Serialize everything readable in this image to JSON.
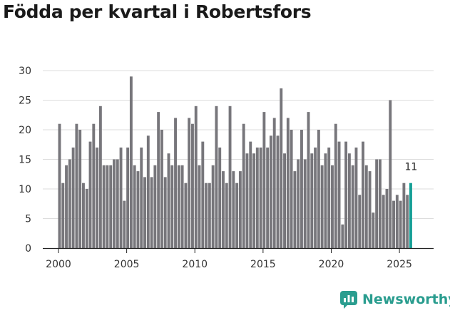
{
  "title": "Födda per kvartal i Robertsfors",
  "brand": {
    "name": "Newsworthy",
    "icon": "newsworthy-logo-icon"
  },
  "colors": {
    "bar": "#77767b",
    "highlight": "#139e95",
    "grid": "#dddddd",
    "axis": "#222222"
  },
  "chart_data": {
    "type": "bar",
    "title": "Födda per kvartal i Robertsfors",
    "xlabel": "",
    "ylabel": "",
    "ylim": [
      0,
      30
    ],
    "yticks": [
      0,
      5,
      10,
      15,
      20,
      25,
      30
    ],
    "xticks": [
      2000,
      2005,
      2010,
      2015,
      2020,
      2025
    ],
    "start_year": 2000,
    "start_quarter": 1,
    "values": [
      21,
      11,
      14,
      15,
      17,
      21,
      20,
      11,
      10,
      18,
      21,
      17,
      24,
      14,
      14,
      14,
      15,
      15,
      17,
      8,
      17,
      29,
      14,
      13,
      17,
      12,
      19,
      12,
      14,
      23,
      20,
      12,
      16,
      14,
      22,
      14,
      14,
      11,
      22,
      21,
      24,
      14,
      18,
      11,
      11,
      14,
      24,
      17,
      13,
      11,
      24,
      13,
      11,
      13,
      21,
      16,
      18,
      16,
      17,
      17,
      23,
      17,
      19,
      22,
      19,
      27,
      16,
      22,
      20,
      13,
      15,
      20,
      15,
      23,
      16,
      17,
      20,
      14,
      16,
      17,
      14,
      21,
      18,
      4,
      18,
      16,
      14,
      17,
      9,
      18,
      14,
      13,
      6,
      15,
      15,
      9,
      10,
      25,
      8,
      9,
      8,
      11,
      9,
      11
    ],
    "last_value_label": "11"
  }
}
